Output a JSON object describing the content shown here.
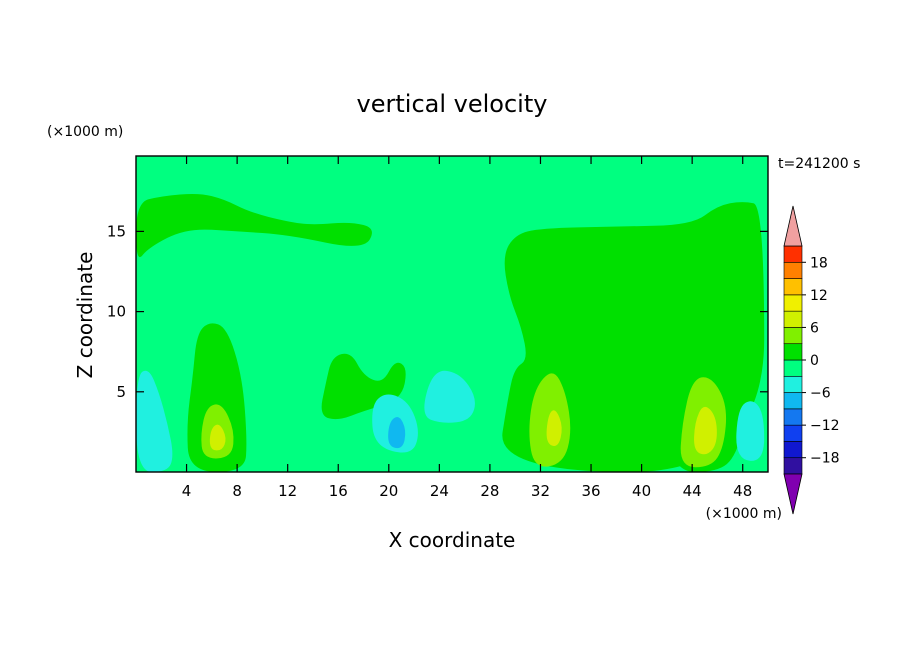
{
  "chart_data": {
    "type": "heatmap",
    "title": "vertical velocity",
    "time_label": "t=241200 s",
    "xlabel": "X coordinate",
    "ylabel": "Z coordinate",
    "x_unit_label": "(×1000 m)",
    "y_unit_label": "(×1000 m)",
    "xlim": [
      0,
      50
    ],
    "ylim": [
      0,
      19.7
    ],
    "x_ticks": [
      4,
      8,
      12,
      16,
      20,
      24,
      28,
      32,
      36,
      40,
      44,
      48
    ],
    "y_ticks": [
      5,
      10,
      15
    ],
    "background_level": 0,
    "colorbar": {
      "levels": [
        -21,
        -18,
        -15,
        -12,
        -9,
        -6,
        -3,
        0,
        3,
        6,
        9,
        12,
        15,
        18,
        21
      ],
      "tick_labels": [
        "18",
        "12",
        "6",
        "0",
        "−6",
        "−12",
        "−18"
      ],
      "tick_values": [
        18,
        12,
        6,
        0,
        -6,
        -12,
        -18
      ],
      "colors": [
        "#8000b0",
        "#3010a0",
        "#1018d0",
        "#1040f0",
        "#1478f0",
        "#10b8f0",
        "#20f0e0",
        "#00ff80",
        "#00e000",
        "#80f000",
        "#d0f000",
        "#f0f000",
        "#ffc000",
        "#ff8000",
        "#ff3000",
        "#e00000"
      ],
      "over_color": "#f0a0a0",
      "under_color": "#8000b0"
    },
    "contour_regions": [
      {
        "name": "updraft-left-stratiform",
        "level": 3,
        "color": "#00e000",
        "polygon": [
          [
            0,
            16.8
          ],
          [
            2,
            17.2
          ],
          [
            5,
            17.4
          ],
          [
            7,
            17
          ],
          [
            9,
            16.2
          ],
          [
            12,
            15.6
          ],
          [
            14,
            15.4
          ],
          [
            17,
            15.6
          ],
          [
            19,
            15.2
          ],
          [
            18,
            13.8
          ],
          [
            12,
            14.8
          ],
          [
            8,
            15
          ],
          [
            4,
            15.2
          ],
          [
            1,
            14
          ],
          [
            0,
            13
          ]
        ]
      },
      {
        "name": "updraft-right-anvil",
        "level": 3,
        "color": "#00e000",
        "polygon": [
          [
            29,
            13.5
          ],
          [
            30,
            14.8
          ],
          [
            32,
            15.2
          ],
          [
            38,
            15.3
          ],
          [
            44,
            15.4
          ],
          [
            46,
            16.6
          ],
          [
            48,
            16.9
          ],
          [
            49.7,
            16.6
          ],
          [
            49.7,
            0
          ],
          [
            28.5,
            0
          ],
          [
            29.5,
            5
          ],
          [
            30,
            6.5
          ],
          [
            31,
            7
          ],
          [
            30.5,
            9
          ],
          [
            29.5,
            11
          ]
        ]
      },
      {
        "name": "updraft-col-1",
        "level": 3,
        "color": "#00e000",
        "polygon": [
          [
            4.2,
            0
          ],
          [
            4,
            3
          ],
          [
            4.5,
            6
          ],
          [
            4.8,
            8.6
          ],
          [
            5.8,
            9.4
          ],
          [
            7.2,
            9
          ],
          [
            8.4,
            6
          ],
          [
            8.8,
            2
          ],
          [
            8.6,
            0
          ]
        ]
      },
      {
        "name": "updraft-mid-patch",
        "level": 3,
        "color": "#00e000",
        "polygon": [
          [
            14.5,
            3.5
          ],
          [
            15,
            5.5
          ],
          [
            15.5,
            7.2
          ],
          [
            17,
            7.5
          ],
          [
            18,
            6
          ],
          [
            19.5,
            5.5
          ],
          [
            20.5,
            7
          ],
          [
            21.5,
            6.5
          ],
          [
            21,
            4.5
          ],
          [
            18,
            3.8
          ],
          [
            16,
            3.2
          ]
        ]
      },
      {
        "name": "updraft-col-3",
        "level": 3,
        "color": "#00e000",
        "polygon": [
          [
            42.5,
            0
          ],
          [
            42,
            4
          ],
          [
            43,
            6.8
          ],
          [
            44.5,
            7.2
          ],
          [
            47,
            6
          ],
          [
            48.5,
            4.2
          ],
          [
            47.5,
            1
          ],
          [
            46,
            0
          ]
        ]
      },
      {
        "name": "updraft-col-2-core",
        "level": 6,
        "color": "#80f000",
        "polygon": [
          [
            31.5,
            0.2
          ],
          [
            31,
            2.5
          ],
          [
            31.5,
            5.2
          ],
          [
            33,
            6.5
          ],
          [
            34,
            5
          ],
          [
            34.5,
            2.5
          ],
          [
            33.8,
            0.5
          ]
        ]
      },
      {
        "name": "updraft-col-3-core",
        "level": 6,
        "color": "#80f000",
        "polygon": [
          [
            43,
            0.3
          ],
          [
            43.2,
            3
          ],
          [
            44,
            5.8
          ],
          [
            45.5,
            6
          ],
          [
            46.8,
            4.2
          ],
          [
            46.5,
            1.5
          ],
          [
            45.5,
            0.3
          ]
        ]
      },
      {
        "name": "updraft-col-1-core",
        "level": 6,
        "color": "#80f000",
        "polygon": [
          [
            5.3,
            0.8
          ],
          [
            5.1,
            2.4
          ],
          [
            5.6,
            4.1
          ],
          [
            6.8,
            4.3
          ],
          [
            7.8,
            2.6
          ],
          [
            7.6,
            0.9
          ]
        ]
      },
      {
        "name": "updraft-col-3-peak",
        "level": 9,
        "color": "#d0f000",
        "polygon": [
          [
            44.1,
            1.3
          ],
          [
            44.2,
            3.1
          ],
          [
            44.9,
            4.3
          ],
          [
            45.9,
            3.5
          ],
          [
            46,
            1.8
          ],
          [
            45.2,
            1
          ]
        ]
      },
      {
        "name": "updraft-col-2-peak",
        "level": 9,
        "color": "#d0f000",
        "polygon": [
          [
            32.4,
            1.8
          ],
          [
            32.6,
            3.6
          ],
          [
            33.2,
            4
          ],
          [
            33.8,
            2.8
          ],
          [
            33.4,
            1.5
          ]
        ]
      },
      {
        "name": "updraft-col-1-peak",
        "level": 9,
        "color": "#d0f000",
        "polygon": [
          [
            5.8,
            1.4
          ],
          [
            5.9,
            2.7
          ],
          [
            6.6,
            3.1
          ],
          [
            7.2,
            2.1
          ],
          [
            6.8,
            1.3
          ]
        ]
      },
      {
        "name": "downdraft-left",
        "level": -3,
        "color": "#20f0e0",
        "polygon": [
          [
            0,
            0
          ],
          [
            0,
            6
          ],
          [
            1,
            6.5
          ],
          [
            1.8,
            5
          ],
          [
            2.5,
            3
          ],
          [
            3,
            1
          ],
          [
            2.5,
            0
          ]
        ]
      },
      {
        "name": "downdraft-centre",
        "level": -3,
        "color": "#20f0e0",
        "polygon": [
          [
            18.8,
            1.6
          ],
          [
            18.6,
            4.2
          ],
          [
            19.8,
            5
          ],
          [
            21.6,
            4.4
          ],
          [
            22.5,
            2.5
          ],
          [
            21.8,
            1
          ]
        ]
      },
      {
        "name": "downdraft-centre-right",
        "level": -3,
        "color": "#20f0e0",
        "polygon": [
          [
            22.5,
            3.5
          ],
          [
            23.5,
            6.4
          ],
          [
            25.6,
            6.2
          ],
          [
            27,
            4.6
          ],
          [
            26.5,
            3.2
          ],
          [
            24.2,
            3
          ]
        ]
      },
      {
        "name": "downdraft-right",
        "level": -3,
        "color": "#20f0e0",
        "polygon": [
          [
            47.4,
            0.8
          ],
          [
            47.6,
            4
          ],
          [
            48.8,
            4.6
          ],
          [
            49.7,
            3.6
          ],
          [
            49.7,
            0.6
          ]
        ]
      },
      {
        "name": "downdraft-centre-core",
        "level": -6,
        "color": "#10b8f0",
        "polygon": [
          [
            19.9,
            1.6
          ],
          [
            20,
            3.1
          ],
          [
            20.8,
            3.6
          ],
          [
            21.4,
            2.6
          ],
          [
            21.1,
            1.4
          ]
        ]
      }
    ]
  }
}
